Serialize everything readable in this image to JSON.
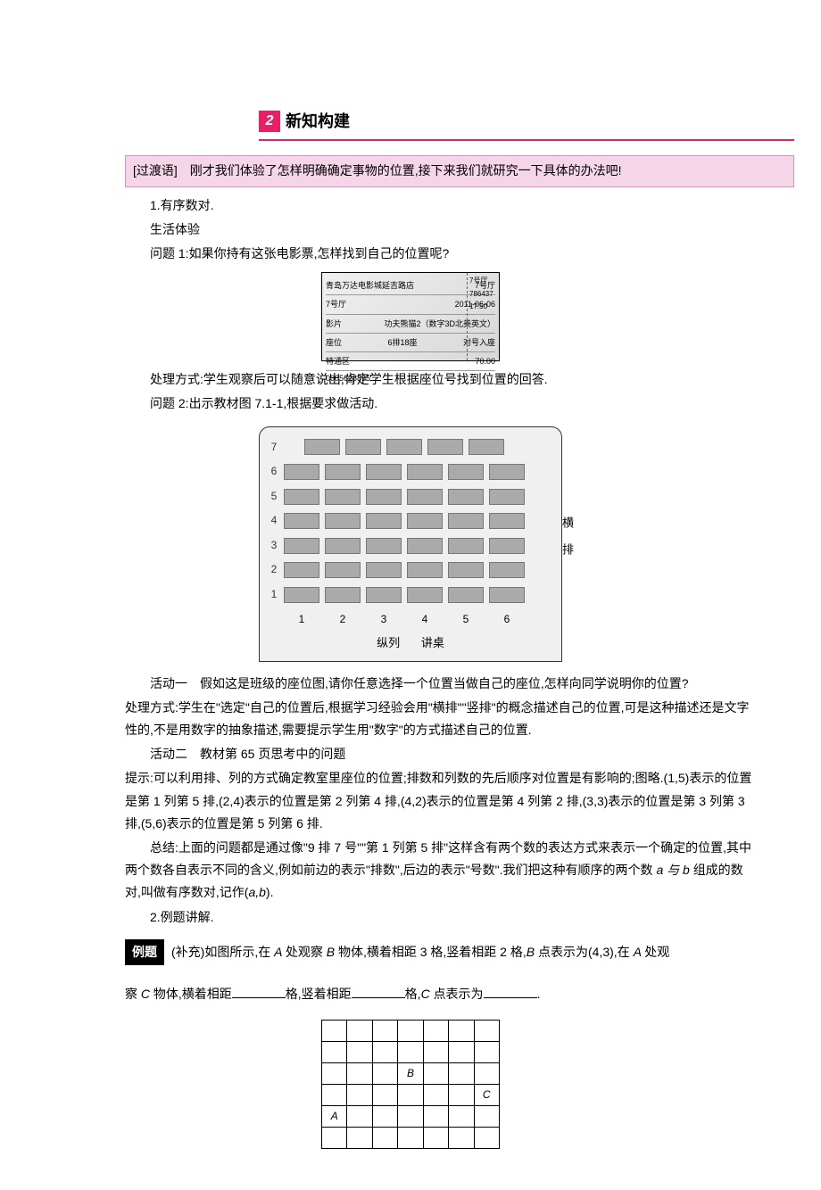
{
  "section": {
    "badge": "2",
    "title": "新知构建"
  },
  "highlight": "[过渡语]　刚才我们体验了怎样明确确定事物的位置,接下来我们就研究一下具体的办法吧!",
  "intro": {
    "p1": "1.有序数对.",
    "p2": "生活体验",
    "p3": "问题 1:如果你持有这张电影票,怎样找到自己的位置呢?"
  },
  "ticket": {
    "title": "青岛万达电影城延吉路店",
    "hall_label": "7号厅",
    "hall": "7号厅",
    "date": "2011-06-06",
    "time": "17:50",
    "movie_label": "影片",
    "movie": "功夫熊猫2（数字3D北美英文）",
    "seat_label": "座位",
    "seat": "6排18座",
    "seat_note": "对号入座",
    "area_label": "特通区",
    "area": "70.00",
    "code": "0005628895",
    "stub_hall": "7号厅",
    "stub_code": "786437",
    "stub_time": "17:50"
  },
  "after_ticket": {
    "p1": "处理方式:学生观察后可以随意说出,肯定学生根据座位号找到位置的回答.",
    "p2": "问题 2:出示教材图 7.1-1,根据要求做活动."
  },
  "seating": {
    "rows": [
      "7",
      "6",
      "5",
      "4",
      "3",
      "2",
      "1"
    ],
    "cols": [
      "1",
      "2",
      "3",
      "4",
      "5",
      "6"
    ],
    "side_upper": "横",
    "side_lower": "排",
    "bottom_left": "纵列",
    "bottom_right": "讲桌",
    "row7_count": 5,
    "other_count": 6
  },
  "activity": {
    "p1": "活动一　假如这是班级的座位图,请你任意选择一个位置当做自己的座位,怎样向同学说明你的位置?",
    "p2": "处理方式:学生在\"选定\"自己的位置后,根据学习经验会用\"横排\"\"竖排\"的概念描述自己的位置,可是这种描述还是文字性的,不是用数字的抽象描述,需要提示学生用\"数字\"的方式描述自己的位置.",
    "p3": "活动二　教材第 65 页思考中的问题",
    "p4": "提示:可以利用排、列的方式确定教室里座位的位置;排数和列数的先后顺序对位置是有影响的;图略.(1,5)表示的位置是第 1 列第 5 排,(2,4)表示的位置是第 2 列第 4 排,(4,2)表示的位置是第 4 列第 2 排,(3,3)表示的位置是第 3 列第 3 排,(5,6)表示的位置是第 5 列第 6 排.",
    "p5_a": "总结:上面的问题都是通过像\"9 排 7 号\"\"第 1 列第 5 排\"这样含有两个数的表达方式来表示一个确定的位置,其中两个数各自表示不同的含义,例如前边的表示\"排数\",后边的表示\"号数\".我们把这种有顺序的两个数 ",
    "p5_ab": "a 与 b ",
    "p5_b": "组成的数对,叫做有序数对,记作(",
    "p5_ab2": "a,b",
    "p5_c": ").",
    "p6": "2.例题讲解."
  },
  "example": {
    "badge": "例题",
    "text_a": "(补充)如图所示,在 ",
    "A": "A ",
    "text_b": "处观察 ",
    "B": "B ",
    "text_c": "物体,横着相距 3 格,竖着相距 2 格,",
    "B2": "B ",
    "text_d": "点表示为(4,3),在 ",
    "A2": "A ",
    "text_e": "处观"
  },
  "example2": {
    "text_a": "察 ",
    "C": "C ",
    "text_b": "物体,横着相距",
    "text_c": "格,竖着相距",
    "text_d": "格,",
    "C2": "C ",
    "text_e": "点表示为",
    "text_f": "."
  },
  "grid": {
    "B": "B",
    "C": "C",
    "A": "A"
  }
}
